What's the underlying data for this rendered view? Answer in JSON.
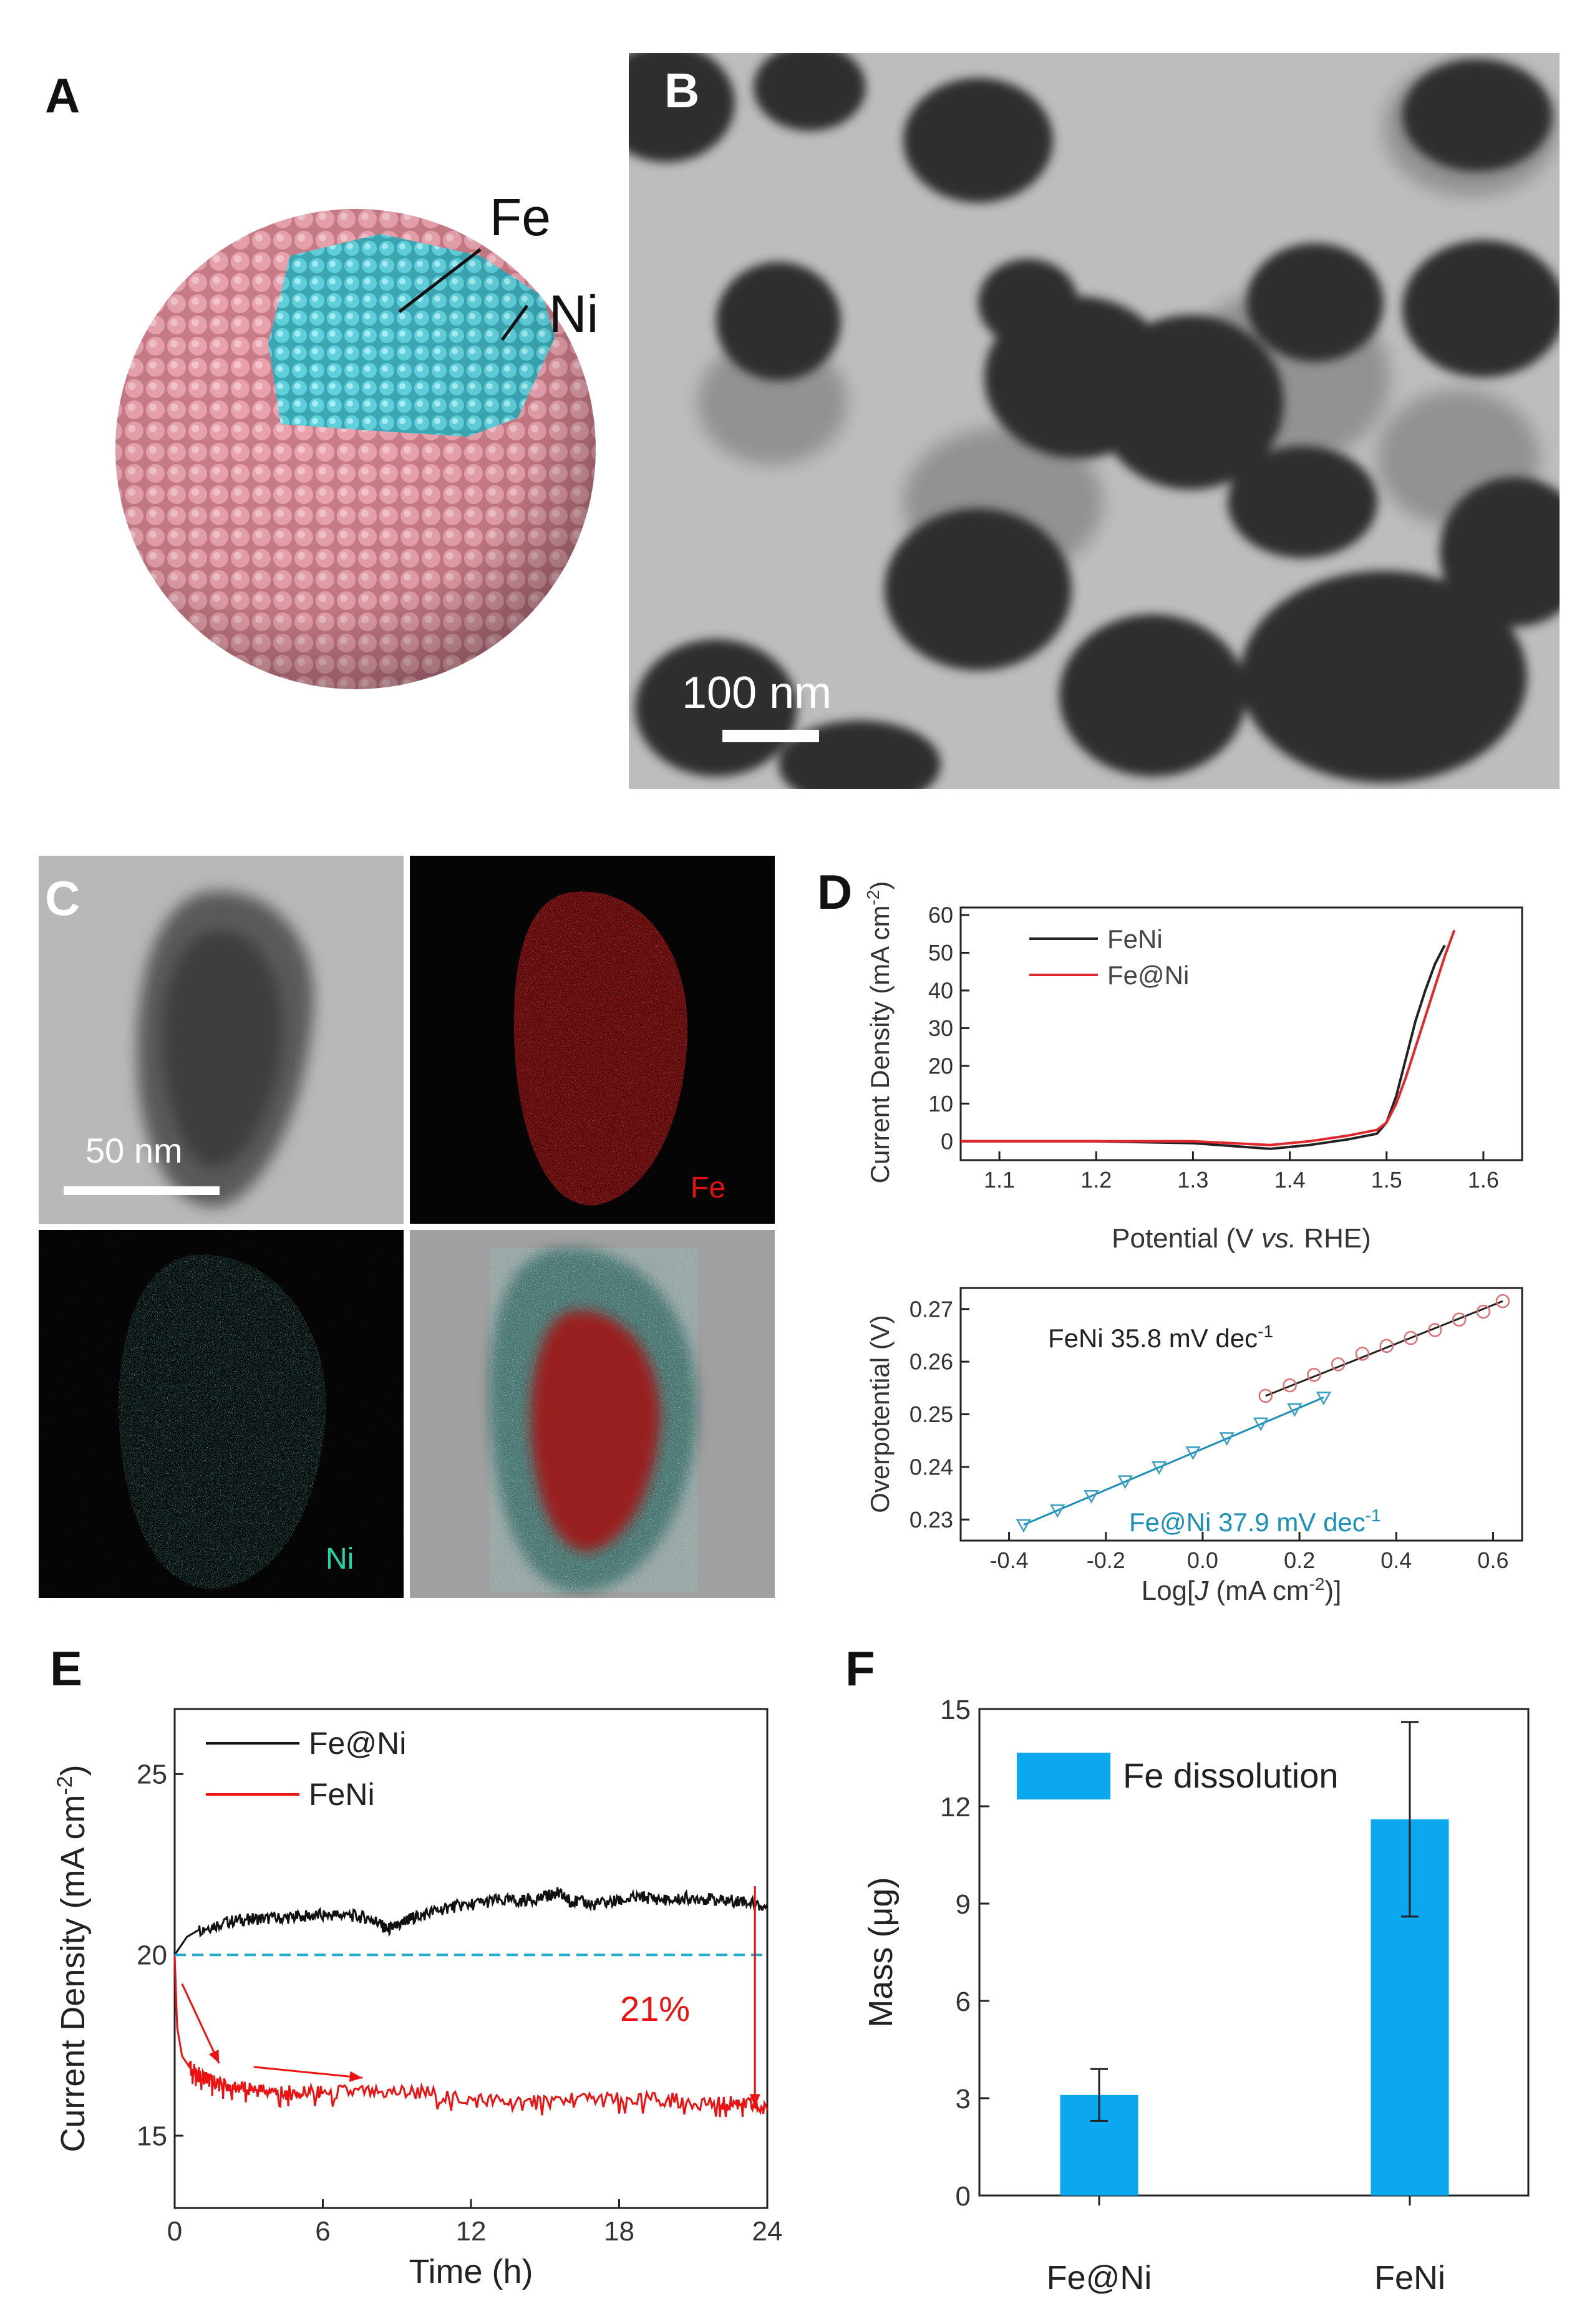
{
  "panels": {
    "A": {
      "letter": "A",
      "labels": {
        "fe": "Fe",
        "ni": "Ni"
      },
      "colors": {
        "shell": "#d4838f",
        "core": "#4fc3cf"
      }
    },
    "B": {
      "letter": "B",
      "scale_bar": "100 nm"
    },
    "C": {
      "letter": "C",
      "scale_bar": "50 nm",
      "labels": {
        "fe": "Fe",
        "ni": "Ni"
      },
      "colors": {
        "fe": "#e01010",
        "ni": "#1fd6a8"
      }
    },
    "D": {
      "letter": "D"
    },
    "E": {
      "letter": "E"
    },
    "F": {
      "letter": "F"
    }
  },
  "chart_data": [
    {
      "id": "D-top",
      "type": "line",
      "xlabel_parts": [
        "Potential (V ",
        "vs.",
        " RHE)"
      ],
      "ylabel": "Current Density (mA cm",
      "ylabel_sup": "-2",
      "ylabel_close": ")",
      "xlim": [
        1.06,
        1.64
      ],
      "ylim": [
        -5,
        62
      ],
      "xticks": [
        "1.1",
        "1.2",
        "1.3",
        "1.4",
        "1.5",
        "1.6"
      ],
      "yticks": [
        "0",
        "10",
        "20",
        "30",
        "40",
        "50",
        "60"
      ],
      "legend_position": "top-left",
      "series": [
        {
          "name": "FeNi",
          "color": "#222222",
          "x": [
            1.06,
            1.2,
            1.3,
            1.38,
            1.42,
            1.46,
            1.49,
            1.5,
            1.51,
            1.52,
            1.53,
            1.54,
            1.55,
            1.56
          ],
          "y": [
            0,
            0,
            -0.5,
            -2,
            -1,
            0.5,
            2,
            5,
            12,
            22,
            32,
            40,
            47,
            52
          ]
        },
        {
          "name": "Fe@Ni",
          "color": "#e0282c",
          "x": [
            1.06,
            1.2,
            1.3,
            1.38,
            1.42,
            1.46,
            1.49,
            1.5,
            1.51,
            1.52,
            1.53,
            1.54,
            1.55,
            1.56,
            1.57
          ],
          "y": [
            0,
            0,
            0,
            -1,
            0,
            1.5,
            3,
            5,
            10,
            17,
            25,
            33,
            41,
            49,
            56
          ]
        }
      ]
    },
    {
      "id": "D-bottom",
      "type": "scatter",
      "xlabel_parts": [
        "Log[",
        "J",
        " (mA cm",
        "-2",
        ")]"
      ],
      "ylabel": "Overpotential (V)",
      "xlim": [
        -0.5,
        0.66
      ],
      "ylim": [
        0.226,
        0.274
      ],
      "xticks": [
        "-0.4",
        "-0.2",
        "0.0",
        "0.2",
        "0.4",
        "0.6"
      ],
      "yticks": [
        "0.23",
        "0.24",
        "0.25",
        "0.26",
        "0.27"
      ],
      "annotations": [
        "FeNi   35.8 mV dec",
        "Fe@Ni   37.9 mV dec"
      ],
      "annotation_sup": "-1",
      "series": [
        {
          "name": "FeNi",
          "color": "#e07070",
          "fit_color": "#222222",
          "x": [
            0.13,
            0.18,
            0.23,
            0.28,
            0.33,
            0.38,
            0.43,
            0.48,
            0.53,
            0.58,
            0.62
          ],
          "y": [
            0.2535,
            0.2555,
            0.2575,
            0.2595,
            0.2615,
            0.263,
            0.2645,
            0.266,
            0.268,
            0.2695,
            0.2715
          ]
        },
        {
          "name": "Fe@Ni",
          "color": "#3b9ec4",
          "fit_color": "#1a8fb8",
          "x": [
            -0.37,
            -0.3,
            -0.23,
            -0.16,
            -0.09,
            -0.02,
            0.05,
            0.12,
            0.19,
            0.25
          ],
          "y": [
            0.229,
            0.2318,
            0.2345,
            0.2373,
            0.24,
            0.2428,
            0.2455,
            0.2483,
            0.251,
            0.2532
          ]
        }
      ]
    },
    {
      "id": "E",
      "type": "line",
      "xlabel": "Time (h)",
      "ylabel": "Current Density (mA cm",
      "ylabel_sup": "-2",
      "ylabel_close": ")",
      "xlim": [
        0,
        24
      ],
      "ylim": [
        13,
        26.8
      ],
      "xticks": [
        "0",
        "6",
        "12",
        "18",
        "24"
      ],
      "yticks": [
        "15",
        "20",
        "25"
      ],
      "reference_y": 20,
      "reference_color": "#22aacc",
      "annotation": "21%",
      "legend_position": "top-left",
      "series": [
        {
          "name": "Fe@Ni",
          "color": "#111111",
          "x": [
            0,
            0.5,
            1,
            2,
            3,
            4,
            5,
            6,
            7,
            8,
            8.6,
            9,
            9.5,
            10,
            11,
            12,
            13,
            14,
            15,
            15.5,
            16,
            17,
            18,
            19,
            20,
            21,
            22,
            23,
            24
          ],
          "y": [
            20,
            20.5,
            20.7,
            20.9,
            21.0,
            21.0,
            21.05,
            21.1,
            21.1,
            21.0,
            20.7,
            20.8,
            21.0,
            21.1,
            21.3,
            21.4,
            21.5,
            21.5,
            21.6,
            21.7,
            21.5,
            21.4,
            21.5,
            21.6,
            21.5,
            21.6,
            21.5,
            21.5,
            21.3
          ]
        },
        {
          "name": "FeNi",
          "color": "#ee1111",
          "x": [
            0,
            0.1,
            0.3,
            0.6,
            1,
            1.5,
            2,
            3,
            4,
            5,
            6,
            8,
            10,
            12,
            14,
            16,
            18,
            20,
            22,
            23,
            24
          ],
          "y": [
            20,
            18.0,
            17.2,
            16.9,
            16.7,
            16.5,
            16.4,
            16.3,
            16.2,
            16.2,
            16.2,
            16.2,
            16.2,
            16.0,
            15.9,
            16.0,
            16.0,
            16.0,
            15.9,
            15.9,
            15.7
          ]
        }
      ]
    },
    {
      "id": "F",
      "type": "bar",
      "categories": [
        "Fe@Ni",
        "FeNi"
      ],
      "values": [
        3.1,
        11.6
      ],
      "errors": [
        0.8,
        3.0
      ],
      "ylabel": "Mass (μg)",
      "ylim": [
        0,
        15
      ],
      "yticks": [
        "0",
        "3",
        "6",
        "9",
        "12",
        "15"
      ],
      "legend": "Fe dissolution",
      "legend_position": "top-left",
      "bar_color": "#0ba8f0"
    }
  ]
}
